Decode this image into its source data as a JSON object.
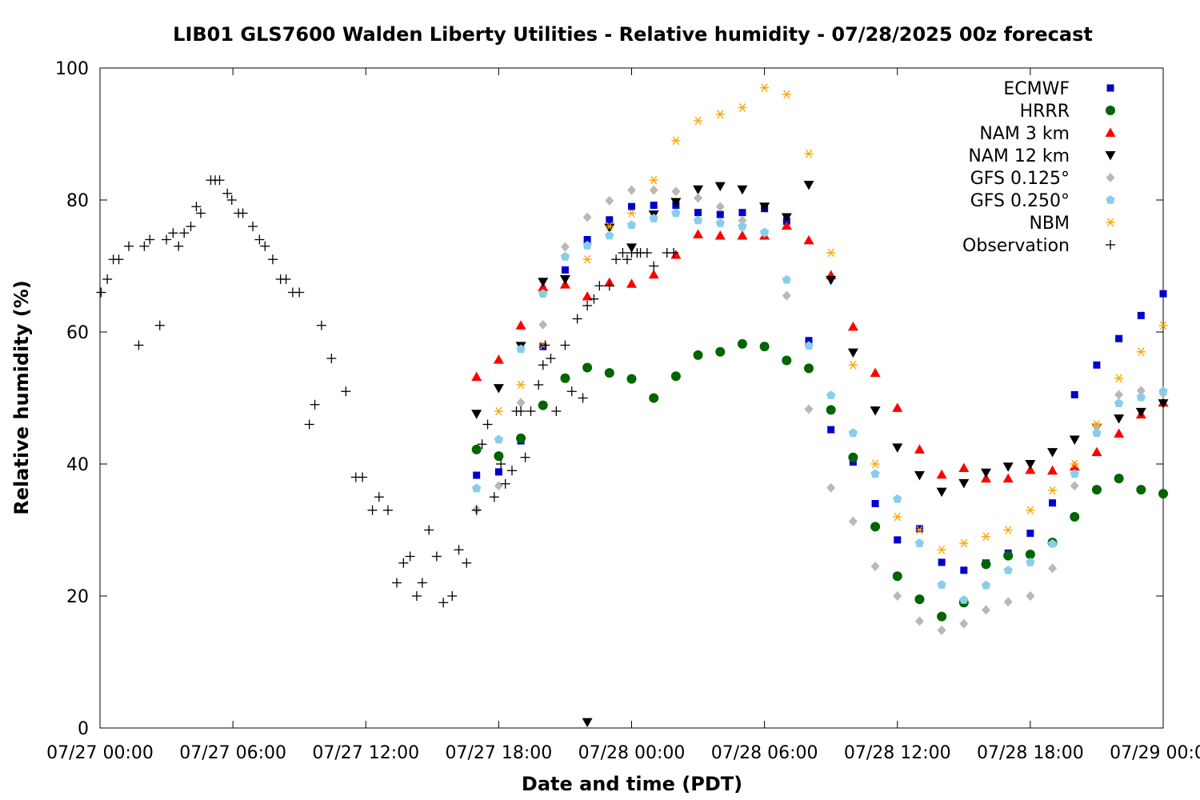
{
  "chart_data": {
    "type": "scatter",
    "title": "LIB01 GLS7600 Walden Liberty Utilities - Relative humidity - 07/28/2025 00z forecast",
    "xlabel": "Date and time (PDT)",
    "ylabel": "Relative humidity (%)",
    "x_unit": "hours since 07/27 00:00 PDT",
    "xlim": [
      0,
      48
    ],
    "ylim": [
      0,
      100
    ],
    "x_ticks": [
      {
        "value": 0,
        "label": "07/27 00:00"
      },
      {
        "value": 6,
        "label": "07/27 06:00"
      },
      {
        "value": 12,
        "label": "07/27 12:00"
      },
      {
        "value": 18,
        "label": "07/27 18:00"
      },
      {
        "value": 24,
        "label": "07/28 00:00"
      },
      {
        "value": 30,
        "label": "07/28 06:00"
      },
      {
        "value": 36,
        "label": "07/28 12:00"
      },
      {
        "value": 42,
        "label": "07/28 18:00"
      },
      {
        "value": 48,
        "label": "07/29 00:00"
      }
    ],
    "y_ticks": [
      {
        "value": 0,
        "label": "0"
      },
      {
        "value": 20,
        "label": "20"
      },
      {
        "value": 40,
        "label": "40"
      },
      {
        "value": 60,
        "label": "60"
      },
      {
        "value": 80,
        "label": "80"
      },
      {
        "value": 100,
        "label": "100"
      }
    ],
    "legend_position": "top-right",
    "grid": false,
    "series": [
      {
        "name": "ECMWF",
        "color": "#0000cc",
        "marker": "square",
        "x": [
          17,
          18,
          19,
          20,
          21,
          22,
          23,
          24,
          25,
          26,
          27,
          28,
          29,
          30,
          31,
          32,
          33,
          34,
          35,
          36,
          37,
          38,
          39,
          40,
          41,
          42,
          43,
          44,
          45,
          46,
          47,
          48
        ],
        "y": [
          38.3,
          38.8,
          43.5,
          57.8,
          69.4,
          74.0,
          77.0,
          79.0,
          79.2,
          79.2,
          78.1,
          77.8,
          78.1,
          78.7,
          76.8,
          58.7,
          45.2,
          40.3,
          34.0,
          28.5,
          30.2,
          25.1,
          23.9,
          25.0,
          26.5,
          29.5,
          34.1,
          50.5,
          55.0,
          59.0,
          62.5,
          65.8
        ]
      },
      {
        "name": "HRRR",
        "color": "#006400",
        "marker": "circle",
        "x": [
          17,
          18,
          19,
          20,
          21,
          22,
          23,
          24,
          25,
          26,
          27,
          28,
          29,
          30,
          31,
          32,
          33,
          34,
          35,
          36,
          37,
          38,
          39,
          40,
          41,
          42,
          43,
          44,
          45,
          46,
          47,
          48
        ],
        "y": [
          42.2,
          41.2,
          43.9,
          48.9,
          53.0,
          54.6,
          53.8,
          52.9,
          50.0,
          53.3,
          56.5,
          57.0,
          58.2,
          57.8,
          55.7,
          54.5,
          48.2,
          41.0,
          30.5,
          23.0,
          19.5,
          16.9,
          19.0,
          24.8,
          26.1,
          26.3,
          28.1,
          32.0,
          36.1,
          37.8,
          36.1,
          35.5
        ]
      },
      {
        "name": "NAM 3 km",
        "color": "#ff0000",
        "marker": "triangle-up",
        "x": [
          17,
          18,
          19,
          20,
          21,
          22,
          23,
          24,
          25,
          26,
          27,
          28,
          29,
          30,
          31,
          32,
          33,
          34,
          35,
          36,
          37,
          38,
          39,
          40,
          41,
          42,
          43,
          44,
          45,
          46,
          47,
          48
        ],
        "y": [
          53.2,
          55.8,
          61.0,
          66.8,
          67.2,
          65.4,
          67.5,
          67.3,
          68.7,
          71.7,
          74.8,
          74.6,
          74.6,
          74.6,
          76.1,
          73.9,
          68.6,
          60.8,
          53.8,
          48.5,
          42.2,
          38.4,
          39.4,
          37.8,
          37.8,
          39.1,
          39.0,
          39.6,
          41.8,
          44.6,
          47.5,
          49.3
        ]
      },
      {
        "name": "NAM 12 km",
        "color": "#000000",
        "marker": "triangle-down",
        "x": [
          17,
          18,
          19,
          20,
          21,
          22,
          23,
          24,
          25,
          26,
          27,
          28,
          29,
          30,
          31,
          32,
          33,
          34,
          35,
          36,
          37,
          38,
          39,
          40,
          41,
          42,
          43,
          44,
          45,
          46,
          47,
          48
        ],
        "y": [
          47.6,
          51.5,
          57.9,
          67.6,
          68.0,
          0.9,
          75.8,
          72.8,
          77.8,
          79.7,
          81.6,
          82.1,
          81.6,
          79.0,
          77.4,
          82.3,
          67.9,
          56.9,
          48.1,
          42.5,
          38.3,
          35.8,
          37.1,
          38.7,
          39.6,
          40.0,
          41.8,
          43.7,
          45.5,
          46.9,
          47.9,
          49.2
        ]
      },
      {
        "name": "GFS 0.125°",
        "color": "#b8b8b8",
        "marker": "diamond",
        "x": [
          17,
          18,
          19,
          20,
          21,
          22,
          23,
          24,
          25,
          26,
          27,
          28,
          29,
          30,
          31,
          32,
          33,
          34,
          35,
          36,
          37,
          38,
          39,
          40,
          41,
          42,
          43,
          44,
          45,
          46,
          47,
          48
        ],
        "y": [
          33.1,
          36.7,
          49.3,
          61.1,
          72.9,
          77.4,
          79.9,
          81.5,
          81.5,
          81.3,
          80.3,
          79.0,
          76.9,
          75.0,
          65.5,
          48.3,
          36.4,
          31.3,
          24.5,
          20.0,
          16.2,
          14.8,
          15.8,
          17.9,
          19.1,
          20.0,
          24.2,
          36.7,
          45.7,
          50.5,
          51.1,
          50.7
        ]
      },
      {
        "name": "GFS 0.250°",
        "color": "#87ceeb",
        "marker": "pentagon",
        "x": [
          17,
          18,
          19,
          20,
          21,
          22,
          23,
          24,
          25,
          26,
          27,
          28,
          29,
          30,
          31,
          32,
          33,
          34,
          35,
          36,
          37,
          38,
          39,
          40,
          41,
          42,
          43,
          44,
          45,
          46,
          47,
          48
        ],
        "y": [
          36.3,
          43.7,
          57.4,
          65.8,
          71.4,
          73.1,
          74.6,
          76.2,
          77.2,
          78.0,
          76.9,
          76.5,
          76.0,
          75.1,
          67.9,
          57.9,
          50.4,
          44.7,
          38.5,
          34.7,
          28.0,
          21.7,
          19.4,
          21.6,
          23.9,
          25.1,
          27.9,
          38.5,
          44.7,
          49.2,
          50.1,
          51.0
        ]
      },
      {
        "name": "NBM",
        "color": "#ffa500",
        "marker": "asterisk",
        "x": [
          18,
          19,
          20,
          22,
          23,
          24,
          25,
          26,
          27,
          28,
          29,
          30,
          31,
          32,
          33,
          34,
          35,
          36,
          37,
          38,
          39,
          40,
          41,
          42,
          43,
          44,
          45,
          46,
          47,
          48
        ],
        "y": [
          48,
          52,
          58,
          71,
          76,
          78,
          83,
          89,
          92,
          93,
          94,
          97,
          96,
          87,
          72,
          55,
          40,
          32,
          30,
          27,
          28,
          29,
          30,
          33,
          36,
          40,
          46,
          53,
          57,
          61
        ]
      },
      {
        "name": "Observation",
        "color": "#000000",
        "marker": "plus",
        "x": [
          0.05,
          0.33,
          0.6,
          0.85,
          1.3,
          1.75,
          2.0,
          2.25,
          2.7,
          3.0,
          3.3,
          3.55,
          3.8,
          4.1,
          4.35,
          4.55,
          5.0,
          5.2,
          5.4,
          5.75,
          5.95,
          6.25,
          6.45,
          6.9,
          7.2,
          7.45,
          7.8,
          8.15,
          8.4,
          8.7,
          9.0,
          9.45,
          9.7,
          10.0,
          10.45,
          11.1,
          11.55,
          11.85,
          12.3,
          12.6,
          13.0,
          13.4,
          13.7,
          14.0,
          14.3,
          14.55,
          14.85,
          15.2,
          15.5,
          15.9,
          16.2,
          16.55,
          17.0,
          17.25,
          17.5,
          17.8,
          18.1,
          18.3,
          18.6,
          18.8,
          19.0,
          19.2,
          19.45,
          19.8,
          20.0,
          20.1,
          20.35,
          20.6,
          21.0,
          21.3,
          21.55,
          21.8,
          22.0,
          22.3,
          22.55,
          23.0,
          23.3,
          23.6,
          23.8,
          24.0,
          24.25,
          24.4,
          24.7,
          25.0,
          25.6,
          25.9
        ],
        "y": [
          66,
          68,
          71,
          71,
          73,
          58,
          73,
          74,
          61,
          74,
          75,
          73,
          75,
          76,
          79,
          78,
          83,
          83,
          83,
          81,
          80,
          78,
          78,
          76,
          74,
          73,
          71,
          68,
          68,
          66,
          66,
          46,
          49,
          61,
          56,
          51,
          38,
          38,
          33,
          35,
          33,
          22,
          25,
          26,
          20,
          22,
          30,
          26,
          19,
          20,
          27,
          25,
          33,
          43,
          46,
          35,
          40,
          37,
          39,
          48,
          48,
          41,
          48,
          52,
          55,
          58,
          56,
          48,
          58,
          51,
          62,
          50,
          64,
          65,
          67,
          67,
          71,
          72,
          71,
          72,
          72,
          72,
          72,
          70,
          72,
          72
        ]
      }
    ]
  }
}
